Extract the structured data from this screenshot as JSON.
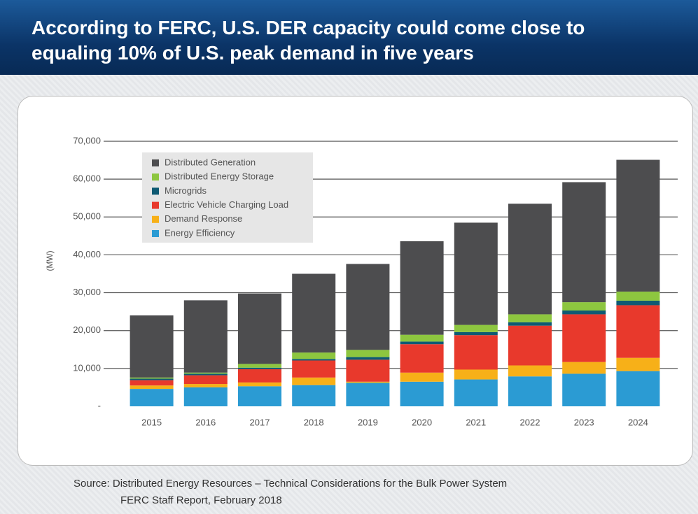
{
  "header": {
    "title_lines": [
      "According to FERC, U.S. DER capacity could come close to",
      "equaling 10% of U.S. peak demand in five years"
    ]
  },
  "chart_data": {
    "type": "stacked-bar",
    "y_label": "(MW)",
    "categories": [
      "2015",
      "2016",
      "2017",
      "2018",
      "2019",
      "2020",
      "2021",
      "2022",
      "2023",
      "2024"
    ],
    "series": [
      {
        "name": "Distributed Generation",
        "color": "#4d4d4f",
        "values": [
          16400,
          19100,
          18600,
          20800,
          22700,
          24700,
          27000,
          29200,
          31700,
          34800
        ]
      },
      {
        "name": "Distributed Energy Storage",
        "color": "#8dc63f",
        "values": [
          300,
          300,
          1000,
          1700,
          1900,
          1800,
          1900,
          2100,
          2200,
          2400
        ]
      },
      {
        "name": "Microgrids",
        "color": "#0e5a73",
        "values": [
          400,
          400,
          400,
          400,
          700,
          700,
          800,
          900,
          1000,
          1200
        ]
      },
      {
        "name": "Electric Vehicle Charging Load",
        "color": "#e8392c",
        "values": [
          1400,
          2300,
          3500,
          4500,
          5800,
          7500,
          9100,
          10500,
          12600,
          13900
        ]
      },
      {
        "name": "Demand Response",
        "color": "#f7b018",
        "values": [
          900,
          900,
          1000,
          2000,
          300,
          2400,
          2600,
          2900,
          3100,
          3500
        ]
      },
      {
        "name": "Energy Efficiency",
        "color": "#2b9bd3",
        "values": [
          4600,
          5000,
          5300,
          5600,
          6200,
          6500,
          7100,
          7900,
          8600,
          9300
        ]
      }
    ],
    "ylim": [
      0,
      70000
    ],
    "yticks": [
      {
        "value": 0,
        "label": "-"
      },
      {
        "value": 10000,
        "label": "10,000"
      },
      {
        "value": 20000,
        "label": "20,000"
      },
      {
        "value": 30000,
        "label": "30,000"
      },
      {
        "value": 40000,
        "label": "40,000"
      },
      {
        "value": 50000,
        "label": "50,000"
      },
      {
        "value": 60000,
        "label": "60,000"
      },
      {
        "value": 70000,
        "label": "70,000"
      }
    ],
    "grid": true
  },
  "footer": {
    "source_lines": [
      "Source: Distributed Energy Resources  – Technical Considerations for the Bulk Power System",
      "FERC Staff Report, February 2018"
    ]
  }
}
